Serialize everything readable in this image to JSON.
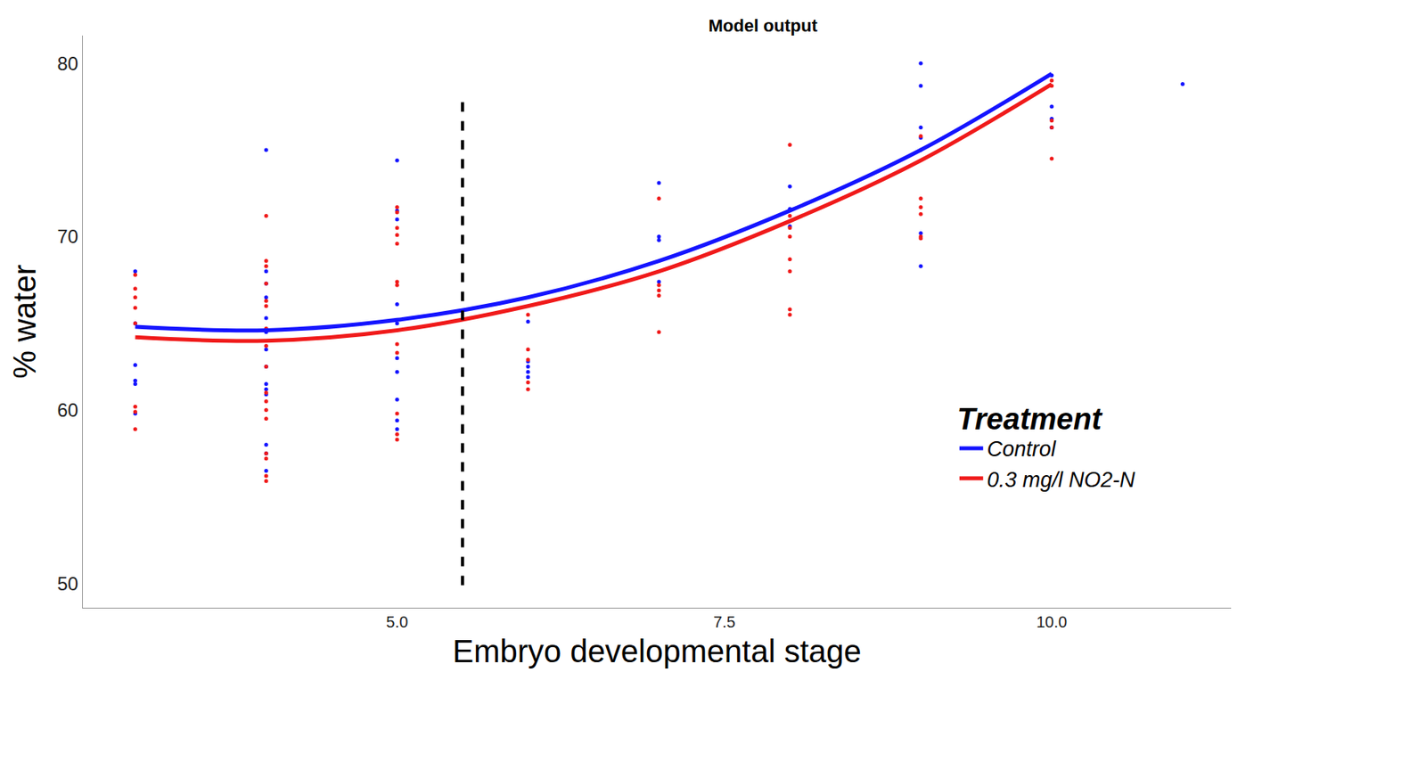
{
  "chart_data": {
    "type": "line",
    "title": "Model output",
    "x_label": "Embryo developmental stage",
    "y_label": "% water",
    "legend_title": "Treatment",
    "legend": "bottom-right",
    "grid": false,
    "xlim": [
      2.6,
      11.37
    ],
    "ylim": [
      48.6,
      81.6
    ],
    "xticks": [
      {
        "value": 5,
        "label": "5.0"
      },
      {
        "value": 7.5,
        "label": "7.5"
      },
      {
        "value": 10,
        "label": "10.0"
      }
    ],
    "yticks": [
      50,
      60,
      70,
      80
    ],
    "series": [
      {
        "name": "Control",
        "color": "#1414ff",
        "x": [
          3,
          4,
          5,
          6,
          7,
          8,
          9,
          10
        ],
        "values": [
          64.8,
          64.6,
          65.2,
          66.5,
          68.6,
          71.5,
          75.0,
          79.4
        ],
        "points": {
          "x": [
            3,
            3,
            3,
            3,
            3,
            3,
            4,
            4,
            4,
            4,
            4,
            4,
            4,
            4,
            4,
            4,
            4,
            4,
            4,
            4,
            5,
            5,
            5,
            5,
            5,
            5,
            5,
            5,
            5,
            5,
            6,
            6,
            6,
            6,
            6,
            7,
            7,
            7,
            7,
            8,
            8,
            8,
            9,
            9,
            9,
            9,
            9,
            9,
            9,
            10,
            10,
            10,
            10,
            11
          ],
          "y": [
            68.0,
            65.0,
            62.6,
            61.7,
            61.5,
            59.8,
            75.0,
            68.0,
            67.3,
            66.5,
            65.3,
            64.5,
            63.5,
            62.5,
            61.5,
            61.2,
            60.9,
            58.0,
            57.5,
            56.5,
            74.4,
            71.5,
            71.0,
            66.1,
            65.0,
            63.0,
            62.2,
            60.6,
            59.4,
            58.9,
            65.1,
            62.8,
            62.5,
            62.2,
            61.9,
            73.1,
            70.0,
            69.8,
            67.4,
            72.9,
            71.6,
            70.6,
            80.0,
            78.7,
            76.3,
            75.7,
            75.0,
            70.2,
            68.3,
            79.3,
            77.5,
            76.8,
            76.3,
            78.8
          ]
        }
      },
      {
        "name": "0.3 mg/l NO2-N",
        "color": "#f01a1a",
        "x": [
          3,
          4,
          5,
          6,
          7,
          8,
          9,
          10
        ],
        "values": [
          64.2,
          64.0,
          64.6,
          66.0,
          68.0,
          70.9,
          74.4,
          78.8
        ],
        "points": {
          "x": [
            3,
            3,
            3,
            3,
            3,
            3,
            3,
            3,
            4,
            4,
            4,
            4,
            4,
            4,
            4,
            4,
            4,
            4,
            4,
            4,
            4,
            4,
            4,
            4,
            4,
            5,
            5,
            5,
            5,
            5,
            5,
            5,
            5,
            5,
            5,
            5,
            5,
            6,
            6,
            6,
            6,
            6,
            7,
            7,
            7,
            7,
            7,
            8,
            8,
            8,
            8,
            8,
            8,
            8,
            8,
            9,
            9,
            9,
            9,
            9,
            9,
            10,
            10,
            10,
            10,
            10
          ],
          "y": [
            67.8,
            67.0,
            66.5,
            65.9,
            65.0,
            60.2,
            59.9,
            58.9,
            71.2,
            68.6,
            68.3,
            67.3,
            66.3,
            66.0,
            64.7,
            63.7,
            62.5,
            61.0,
            60.5,
            60.0,
            59.5,
            57.5,
            57.2,
            56.2,
            55.9,
            71.7,
            71.4,
            70.5,
            70.1,
            69.6,
            67.4,
            67.2,
            63.8,
            63.3,
            59.8,
            58.6,
            58.3,
            65.5,
            63.5,
            62.9,
            61.6,
            61.2,
            72.2,
            67.2,
            66.9,
            66.6,
            64.5,
            75.3,
            71.2,
            70.5,
            70.0,
            68.7,
            68.0,
            65.8,
            65.5,
            75.8,
            72.2,
            71.7,
            71.3,
            70.0,
            69.9,
            79.0,
            78.7,
            76.7,
            76.3,
            74.5
          ]
        }
      }
    ],
    "reference_line": {
      "x": 5.5,
      "y": [
        49.9,
        77.9
      ],
      "color": "#000000",
      "line_style": "dash"
    }
  }
}
